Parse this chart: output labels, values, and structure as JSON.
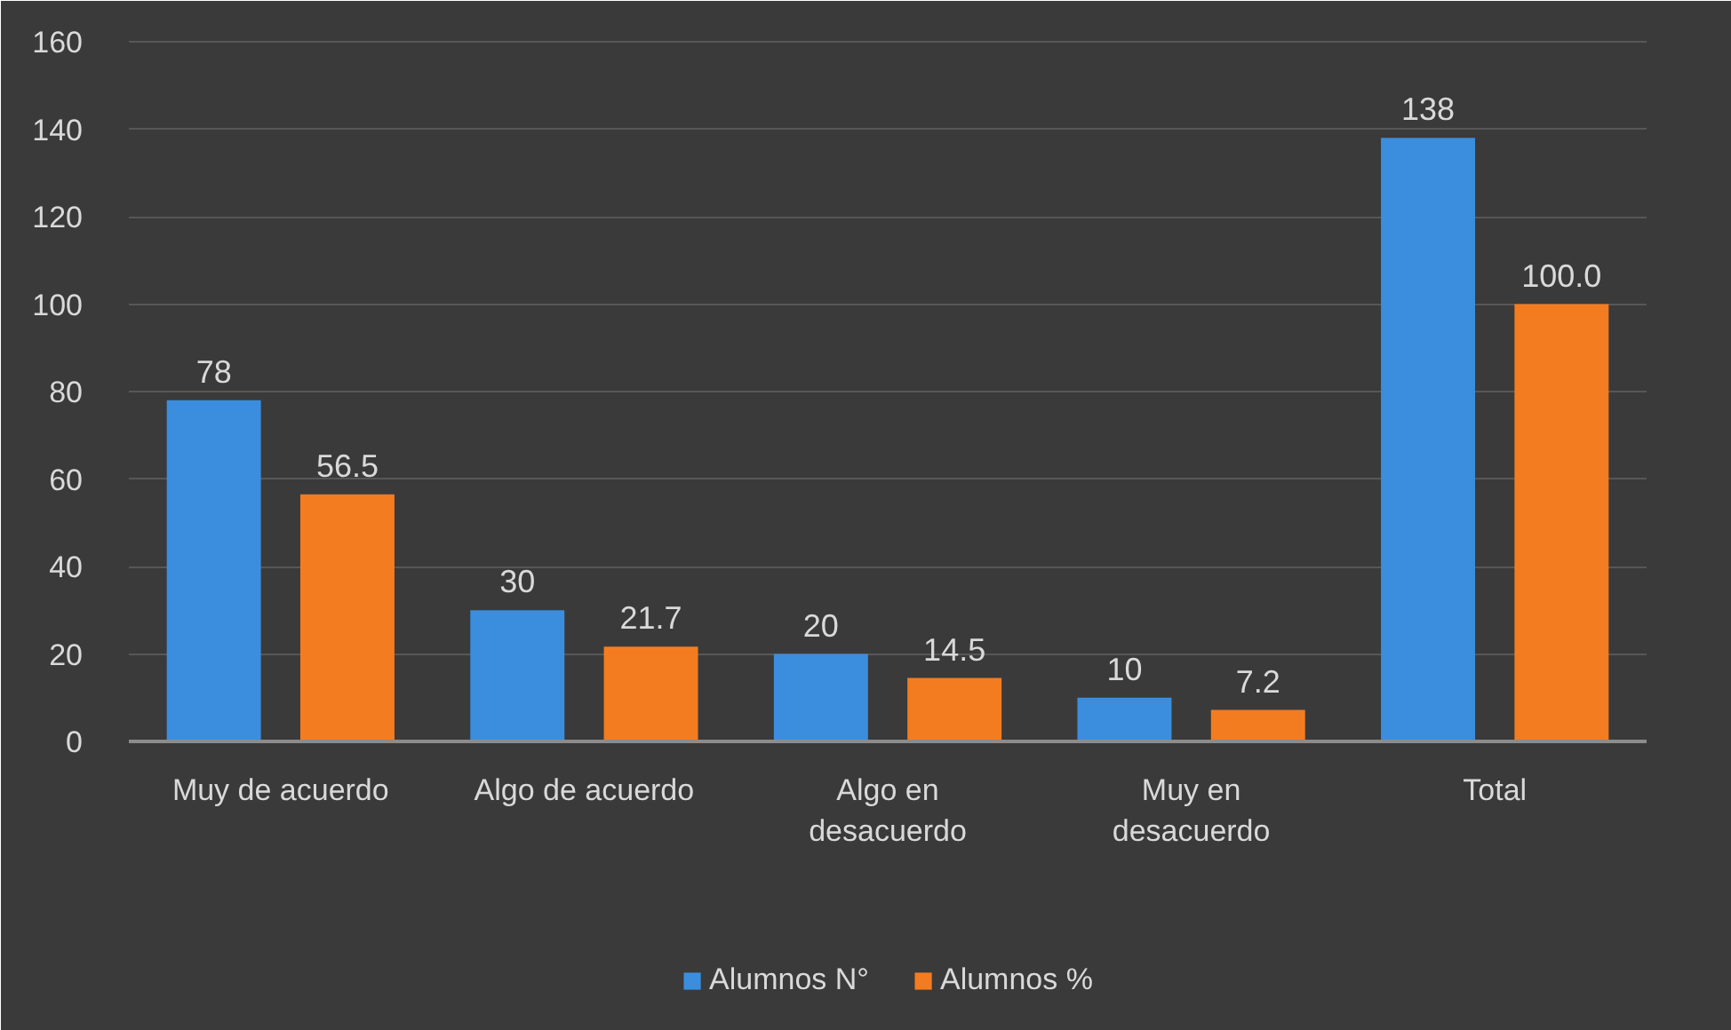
{
  "chart_data": {
    "type": "bar",
    "categories": [
      "Muy de acuerdo",
      "Algo de acuerdo",
      "Algo en desacuerdo",
      "Muy en desacuerdo",
      "Total"
    ],
    "series": [
      {
        "name": "Alumnos N°",
        "color": "#3b8ede",
        "values": [
          78,
          30,
          20,
          10,
          138
        ],
        "value_labels": [
          "78",
          "30",
          "20",
          "10",
          "138"
        ]
      },
      {
        "name": "Alumnos %",
        "color": "#f47c20",
        "values": [
          56.5,
          21.7,
          14.5,
          7.2,
          100.0
        ],
        "value_labels": [
          "56.5",
          "21.7",
          "14.5",
          "7.2",
          "100.0"
        ]
      }
    ],
    "ylim": [
      0,
      160
    ],
    "yticks": [
      0,
      20,
      40,
      60,
      80,
      100,
      120,
      140,
      160
    ],
    "grid": "y",
    "legend": "bottom"
  }
}
